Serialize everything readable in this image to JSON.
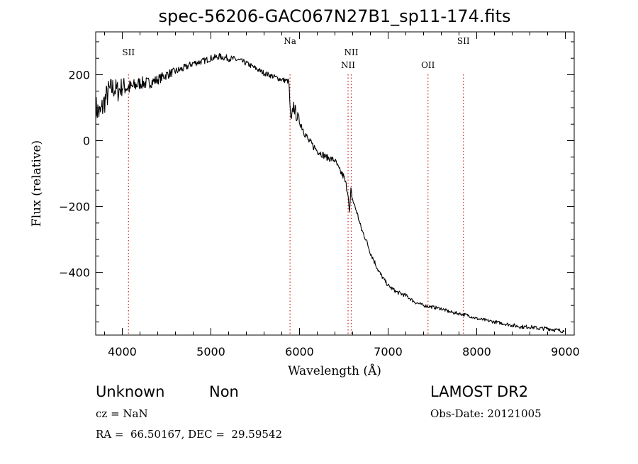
{
  "chart_data": {
    "type": "line",
    "title": "spec-56206-GAC067N27B1_sp11-174.fits",
    "xlabel": "Wavelength (Å)",
    "ylabel": "Flux (relative)",
    "xlim": [
      3700,
      9100
    ],
    "ylim": [
      -590,
      330
    ],
    "x_ticks": [
      4000,
      5000,
      6000,
      7000,
      8000,
      9000
    ],
    "x_tick_labels": [
      "4000",
      "5000",
      "6000",
      "7000",
      "8000",
      "9000"
    ],
    "y_ticks": [
      -400,
      -200,
      0,
      200
    ],
    "y_tick_labels": [
      "−400",
      "−200",
      "0",
      "200"
    ],
    "grid": false,
    "line_color": "#000000",
    "marker_color": "#cc2222",
    "series": [
      {
        "x": [
          3700,
          3750,
          3800,
          3850,
          3900,
          3950,
          4000,
          4100,
          4200,
          4300,
          4400,
          4500,
          4600,
          4700,
          4800,
          4900,
          5000,
          5100,
          5200,
          5300,
          5400,
          5500,
          5600,
          5700,
          5800,
          5880,
          5900,
          5910,
          5930,
          5960,
          6000,
          6050,
          6100,
          6200,
          6300,
          6400,
          6450,
          6500,
          6550,
          6563,
          6580,
          6600,
          6650,
          6700,
          6750,
          6800,
          6850,
          6900,
          6950,
          7000,
          7050,
          7100,
          7150,
          7200,
          7300,
          7400,
          7500,
          7600,
          7700,
          7800,
          7900,
          8000,
          8100,
          8200,
          8300,
          8400,
          8500,
          8600,
          8700,
          8800,
          8900,
          8990
        ],
        "y": [
          100,
          80,
          120,
          150,
          160,
          150,
          165,
          160,
          175,
          175,
          185,
          200,
          210,
          220,
          235,
          240,
          250,
          255,
          250,
          245,
          235,
          220,
          205,
          195,
          185,
          180,
          60,
          60,
          110,
          80,
          60,
          30,
          0,
          -30,
          -50,
          -60,
          -90,
          -110,
          -160,
          -230,
          -150,
          -180,
          -220,
          -270,
          -300,
          -340,
          -370,
          -400,
          -420,
          -440,
          -450,
          -460,
          -465,
          -470,
          -490,
          -500,
          -505,
          -510,
          -520,
          -525,
          -530,
          -540,
          -545,
          -550,
          -555,
          -560,
          -565,
          -565,
          -570,
          -570,
          -575,
          -578
        ],
        "noise": [
          40,
          40,
          40,
          40,
          35,
          35,
          30,
          25,
          20,
          18,
          15,
          15,
          12,
          12,
          10,
          10,
          10,
          10,
          10,
          10,
          8,
          8,
          8,
          8,
          8,
          8,
          15,
          15,
          20,
          20,
          15,
          15,
          12,
          12,
          10,
          10,
          10,
          12,
          12,
          12,
          10,
          10,
          8,
          8,
          8,
          8,
          8,
          8,
          6,
          6,
          6,
          6,
          6,
          6,
          5,
          5,
          5,
          5,
          5,
          5,
          5,
          5,
          5,
          5,
          5,
          6,
          6,
          6,
          6,
          6,
          6,
          6
        ]
      }
    ],
    "lines": [
      {
        "label": "SII",
        "wavelength": 4070,
        "label_row": 1
      },
      {
        "label": "Na",
        "wavelength": 5893,
        "label_row": 0
      },
      {
        "label": "NII",
        "wavelength": 6548,
        "label_row": 2
      },
      {
        "label": "NII",
        "wavelength": 6584,
        "label_row": 1
      },
      {
        "label": "OII",
        "wavelength": 7450,
        "label_row": 2
      },
      {
        "label": "SII",
        "wavelength": 7850,
        "label_row": 0
      }
    ]
  },
  "info": {
    "class": "Unknown",
    "subclass": "Non",
    "survey": "LAMOST DR2",
    "cz": "cz = NaN",
    "obs_date": "Obs-Date: 20121005",
    "coords": "RA =  66.50167, DEC =  29.59542"
  }
}
